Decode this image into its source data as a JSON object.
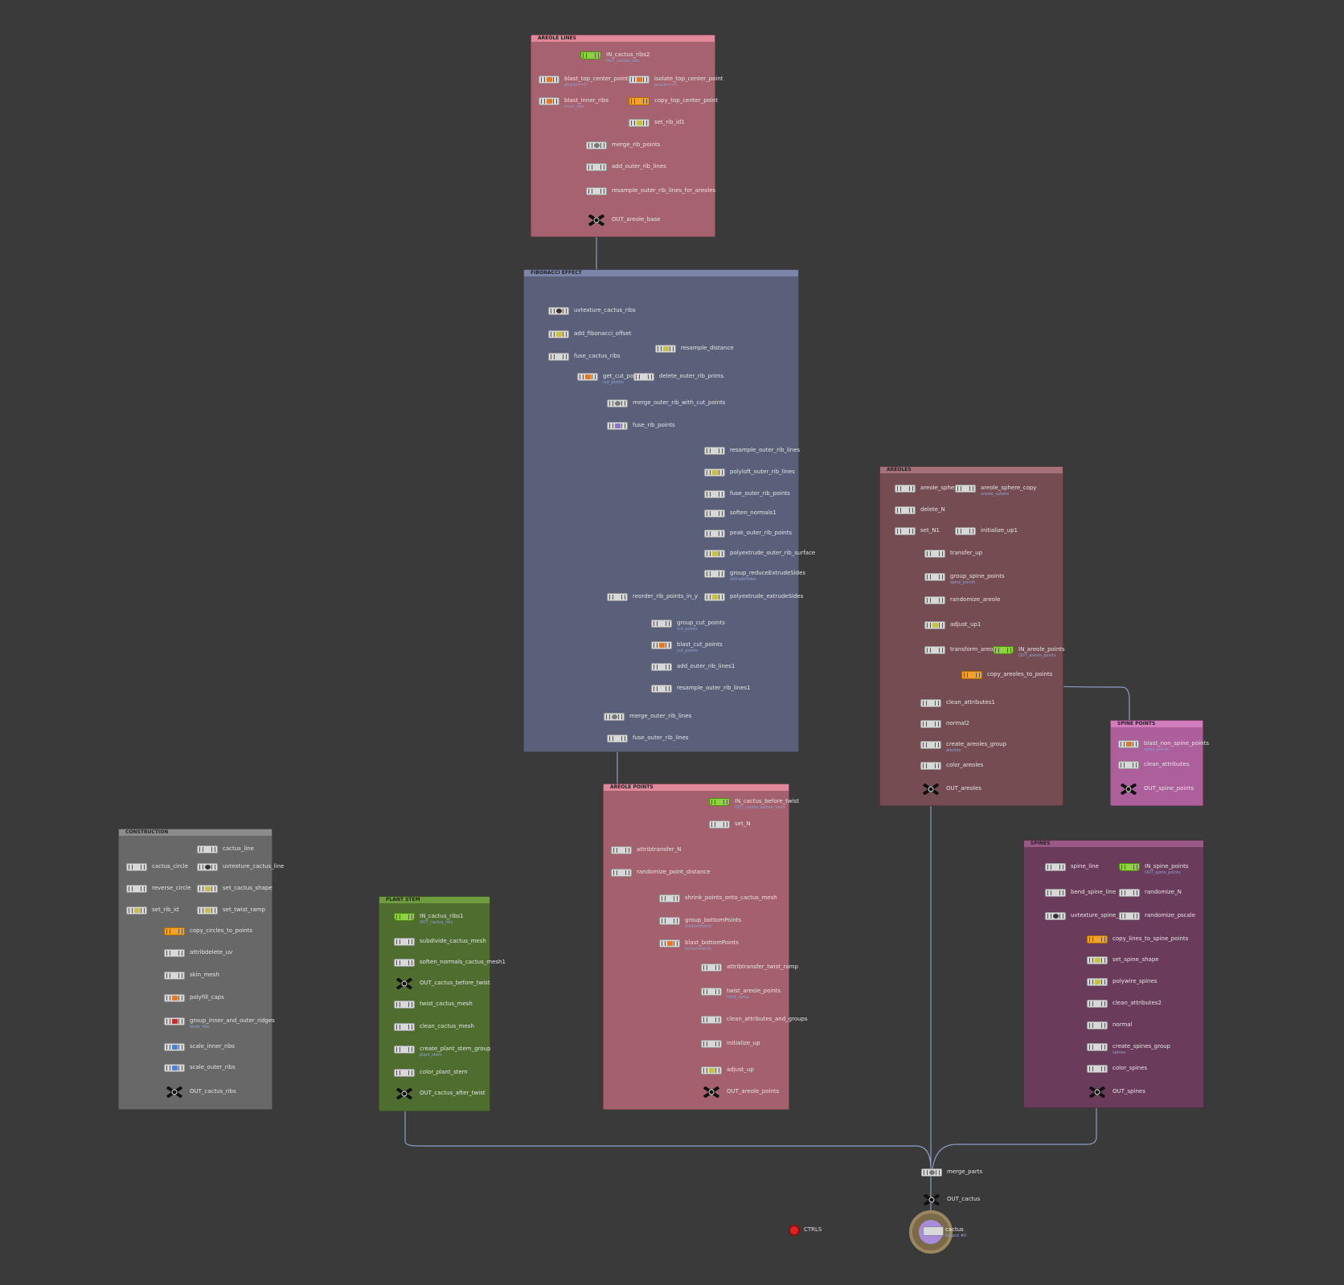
{
  "boxes": {
    "areole_lines": {
      "title": "AREOLE LINES",
      "color": "#b66a77"
    },
    "fibonacci": {
      "title": "FIBONACCI EFFECT",
      "color": "#5b6179"
    },
    "areoles": {
      "title": "AREOLES",
      "color": "#7a4e55"
    },
    "spine_points": {
      "title": "SPINE POINTS",
      "color": "#b0609c"
    },
    "areole_points": {
      "title": "AREOLE POINTS",
      "color": "#a8616d"
    },
    "construction": {
      "title": "CONSTRUCTION",
      "color": "#6a6a6a"
    },
    "plant_stem": {
      "title": "PLANT STEM",
      "color": "#4f6f30"
    },
    "spines": {
      "title": "SPINES",
      "color": "#6d3d5d"
    }
  },
  "nodes": {
    "in_cactus_ribs2": {
      "label": "IN_cactus_ribs2",
      "sub": "OUT_cactus_ribs"
    },
    "blast_top_center_point": {
      "label": "blast_top_center_point",
      "sub": "ptnum==0"
    },
    "isolate_top_center_point": {
      "label": "isolate_top_center_point",
      "sub": "ptnum==0"
    },
    "blast_inner_ribs": {
      "label": "blast_inner_ribs",
      "sub": "inner_ribs"
    },
    "copy_top_center_point": {
      "label": "copy_top_center_point",
      "sub": ""
    },
    "set_rib_id1": {
      "label": "set_rib_id1",
      "sub": ""
    },
    "merge_rib_points": {
      "label": "merge_rib_points",
      "sub": ""
    },
    "add_outer_rib_lines": {
      "label": "add_outer_rib_lines",
      "sub": ""
    },
    "resample_outer_rib_lines_for_areoles": {
      "label": "resample_outer_rib_lines_for_areoles",
      "sub": ""
    },
    "out_areole_base": {
      "label": "OUT_areole_base",
      "sub": ""
    },
    "uvtexture_cactus_ribs": {
      "label": "uvtexture_cactus_ribs",
      "sub": ""
    },
    "add_fibonacci_offset": {
      "label": "add_fibonacci_offset",
      "sub": ""
    },
    "fuse_cactus_ribs": {
      "label": "fuse_cactus_ribs",
      "sub": ""
    },
    "resample_distance": {
      "label": "resample_distance",
      "sub": ""
    },
    "get_cut_point": {
      "label": "get_cut_point",
      "sub": "cut_points"
    },
    "delete_outer_rib_prims": {
      "label": "delete_outer_rib_prims",
      "sub": ""
    },
    "merge_outer_rib_with_cut_points": {
      "label": "merge_outer_rib_with_cut_points",
      "sub": ""
    },
    "fuse_rib_points": {
      "label": "fuse_rib_points",
      "sub": ""
    },
    "resample_outer_rib_lines": {
      "label": "resample_outer_rib_lines",
      "sub": ""
    },
    "polyloft_outer_rib_lines": {
      "label": "polyloft_outer_rib_lines",
      "sub": ""
    },
    "fuse_outer_rib_points": {
      "label": "fuse_outer_rib_points",
      "sub": ""
    },
    "soften_normals1": {
      "label": "soften_normals1",
      "sub": ""
    },
    "peak_outer_rib_points": {
      "label": "peak_outer_rib_points",
      "sub": ""
    },
    "polyextrude_outer_rib_surface": {
      "label": "polyextrude_outer_rib_surface",
      "sub": ""
    },
    "group_reduceExtrudeSides": {
      "label": "group_reduceExtrudeSides",
      "sub": "extrudeSides"
    },
    "reorder_rib_points_in_y": {
      "label": "reorder_rib_points_in_y",
      "sub": ""
    },
    "polyextrude_extrudeSides": {
      "label": "polyextrude_extrudeSides",
      "sub": ""
    },
    "group_cut_points": {
      "label": "group_cut_points",
      "sub": "cut_points"
    },
    "blast_cut_points": {
      "label": "blast_cut_points",
      "sub": "cut_points"
    },
    "add_outer_rib_lines1": {
      "label": "add_outer_rib_lines1",
      "sub": ""
    },
    "resample_outer_rib_lines1": {
      "label": "resample_outer_rib_lines1",
      "sub": ""
    },
    "merge_outer_rib_lines": {
      "label": "merge_outer_rib_lines",
      "sub": ""
    },
    "fuse_outer_rib_lines": {
      "label": "fuse_outer_rib_lines",
      "sub": ""
    },
    "areole_sphere": {
      "label": "areole_sphere",
      "sub": ""
    },
    "areole_sphere_copy": {
      "label": "areole_sphere_copy",
      "sub": "areole_sphere"
    },
    "delete_N": {
      "label": "delete_N",
      "sub": ""
    },
    "set_N1": {
      "label": "set_N1",
      "sub": ""
    },
    "initialize_up1": {
      "label": "initialize_up1",
      "sub": ""
    },
    "transfer_up": {
      "label": "transfer_up",
      "sub": ""
    },
    "group_spine_points": {
      "label": "group_spine_points",
      "sub": "spine_points"
    },
    "randomize_areole": {
      "label": "randomize_areole",
      "sub": ""
    },
    "adjust_up1": {
      "label": "adjust_up1",
      "sub": ""
    },
    "transform_areole": {
      "label": "transform_areole",
      "sub": ""
    },
    "in_areole_points": {
      "label": "IN_areole_points",
      "sub": "OUT_areole_points"
    },
    "copy_areoles_to_points": {
      "label": "copy_areoles_to_points",
      "sub": ""
    },
    "clean_attributes1": {
      "label": "clean_attributes1",
      "sub": ""
    },
    "normal2": {
      "label": "normal2",
      "sub": ""
    },
    "create_areoles_group": {
      "label": "create_areoles_group",
      "sub": "areoles"
    },
    "color_areoles": {
      "label": "color_areoles",
      "sub": ""
    },
    "out_areoles": {
      "label": "OUT_areoles",
      "sub": ""
    },
    "blast_non_spine_points": {
      "label": "blast_non_spine_points",
      "sub": "spine_points"
    },
    "clean_attributes": {
      "label": "clean_attributes",
      "sub": ""
    },
    "out_spine_points": {
      "label": "OUT_spine_points",
      "sub": ""
    },
    "in_cactus_before_twist": {
      "label": "IN_cactus_before_twist",
      "sub": "OUT_cactus_before_twist"
    },
    "set_N": {
      "label": "set_N",
      "sub": ""
    },
    "attribtransfer_N": {
      "label": "attribtransfer_N",
      "sub": ""
    },
    "randomize_point_distance": {
      "label": "randomize_point_distance",
      "sub": ""
    },
    "shrink_points_onto_cactus_mesh": {
      "label": "shrink_points_onto_cactus_mesh",
      "sub": ""
    },
    "group_bottomPoints": {
      "label": "group_bottomPoints",
      "sub": "bottomPoints"
    },
    "blast_bottomPoints": {
      "label": "blast_bottomPoints",
      "sub": "bottomPoints"
    },
    "attribtransfer_twist_ramp": {
      "label": "attribtransfer_twist_ramp",
      "sub": ""
    },
    "twist_areole_points": {
      "label": "twist_areole_points",
      "sub": "twist_ramp"
    },
    "clean_attributes_and_groups": {
      "label": "clean_attributes_and_groups",
      "sub": ""
    },
    "initialize_up": {
      "label": "initialize_up",
      "sub": ""
    },
    "adjust_up": {
      "label": "adjust_up",
      "sub": ""
    },
    "out_areole_points": {
      "label": "OUT_areole_points",
      "sub": ""
    },
    "cactus_line": {
      "label": "cactus_line",
      "sub": ""
    },
    "cactus_circle": {
      "label": "cactus_circle",
      "sub": ""
    },
    "uvtexture_cactus_line": {
      "label": "uvtexture_cactus_line",
      "sub": ""
    },
    "reverse_circle": {
      "label": "reverse_circle",
      "sub": ""
    },
    "set_cactus_shape": {
      "label": "set_cactus_shape",
      "sub": ""
    },
    "set_rib_id": {
      "label": "set_rib_id",
      "sub": ""
    },
    "set_twist_ramp": {
      "label": "set_twist_ramp",
      "sub": ""
    },
    "copy_circles_to_points": {
      "label": "copy_circles_to_points",
      "sub": ""
    },
    "attribdelete_uv": {
      "label": "attribdelete_uv",
      "sub": ""
    },
    "skin_mesh": {
      "label": "skin_mesh",
      "sub": ""
    },
    "polyfill_caps": {
      "label": "polyfill_caps",
      "sub": ""
    },
    "group_inner_and_outer_ridges": {
      "label": "group_inner_and_outer_ridges",
      "sub": "inner_ribs"
    },
    "scale_inner_ribs": {
      "label": "scale_inner_ribs",
      "sub": ""
    },
    "scale_outer_ribs": {
      "label": "scale_outer_ribs",
      "sub": ""
    },
    "out_cactus_ribs": {
      "label": "OUT_cactus_ribs",
      "sub": ""
    },
    "in_cactus_ribs1": {
      "label": "IN_cactus_ribs1",
      "sub": "OUT_cactus_ribs"
    },
    "subdivide_cactus_mesh": {
      "label": "subdivide_cactus_mesh",
      "sub": ""
    },
    "soften_normals_cactus_mesh1": {
      "label": "soften_normals_cactus_mesh1",
      "sub": ""
    },
    "out_cactus_before_twist": {
      "label": "OUT_cactus_before_twist",
      "sub": ""
    },
    "twist_cactus_mesh": {
      "label": "twist_cactus_mesh",
      "sub": ""
    },
    "clean_cactus_mesh": {
      "label": "clean_cactus_mesh",
      "sub": ""
    },
    "create_plant_stem_group": {
      "label": "create_plant_stem_group",
      "sub": "plant_stem"
    },
    "color_plant_stem": {
      "label": "color_plant_stem",
      "sub": ""
    },
    "out_cactus_after_twist": {
      "label": "OUT_cactus_after_twist",
      "sub": ""
    },
    "spine_line": {
      "label": "spine_line",
      "sub": ""
    },
    "in_spine_points": {
      "label": "IN_spine_points",
      "sub": "OUT_spine_points"
    },
    "bend_spine_line": {
      "label": "bend_spine_line",
      "sub": ""
    },
    "randomize_N": {
      "label": "randomize_N",
      "sub": ""
    },
    "uvtexture_spine_line": {
      "label": "uvtexture_spine_line",
      "sub": ""
    },
    "randomize_pscale": {
      "label": "randomize_pscale",
      "sub": ""
    },
    "copy_lines_to_spine_points": {
      "label": "copy_lines_to_spine_points",
      "sub": ""
    },
    "set_spine_shape": {
      "label": "set_spine_shape",
      "sub": ""
    },
    "polywire_spines": {
      "label": "polywire_spines",
      "sub": ""
    },
    "clean_attributes2": {
      "label": "clean_attributes2",
      "sub": ""
    },
    "normal": {
      "label": "normal",
      "sub": ""
    },
    "create_spines_group": {
      "label": "create_spines_group",
      "sub": "spines"
    },
    "color_spines": {
      "label": "color_spines",
      "sub": ""
    },
    "out_spines": {
      "label": "OUT_spines",
      "sub": ""
    },
    "merge_parts": {
      "label": "merge_parts",
      "sub": ""
    },
    "out_cactus": {
      "label": "OUT_cactus",
      "sub": ""
    }
  },
  "ctrls": {
    "label": "CTRLS"
  },
  "cactus": {
    "label": "cactus",
    "sub": "Output #0"
  },
  "colors": {
    "wire": "#8a9fc4",
    "dot": "#9aa3c9",
    "accent_green": "#8fd23f",
    "accent_orange": "#f2a12a"
  }
}
